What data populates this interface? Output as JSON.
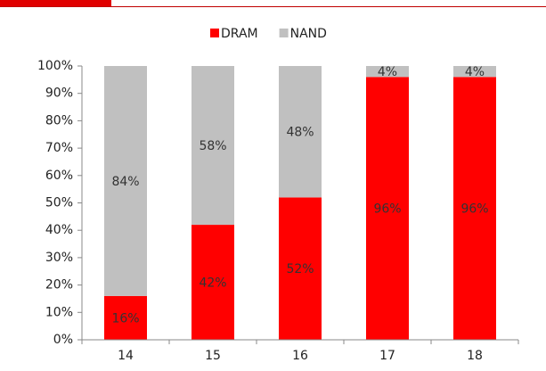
{
  "chart_data": {
    "type": "stacked_bar",
    "categories": [
      "14",
      "15",
      "16",
      "17",
      "18"
    ],
    "series": [
      {
        "name": "DRAM",
        "color": "#ff0000",
        "values": [
          16,
          42,
          52,
          96,
          96
        ],
        "value_labels": [
          "16%",
          "42%",
          "52%",
          "96%",
          "96%"
        ]
      },
      {
        "name": "NAND",
        "color": "#c0c0c0",
        "values": [
          84,
          58,
          48,
          4,
          4
        ],
        "value_labels": [
          "84%",
          "58%",
          "48%",
          "4%",
          "4%"
        ]
      }
    ],
    "ylim": [
      0,
      100
    ],
    "yticks": [
      {
        "value": 0,
        "label": "0%"
      },
      {
        "value": 10,
        "label": "10%"
      },
      {
        "value": 20,
        "label": "20%"
      },
      {
        "value": 30,
        "label": "30%"
      },
      {
        "value": 40,
        "label": "40%"
      },
      {
        "value": 50,
        "label": "50%"
      },
      {
        "value": 60,
        "label": "60%"
      },
      {
        "value": 70,
        "label": "70%"
      },
      {
        "value": 80,
        "label": "80%"
      },
      {
        "value": 90,
        "label": "90%"
      },
      {
        "value": 100,
        "label": "100%"
      }
    ],
    "legend": "top"
  }
}
